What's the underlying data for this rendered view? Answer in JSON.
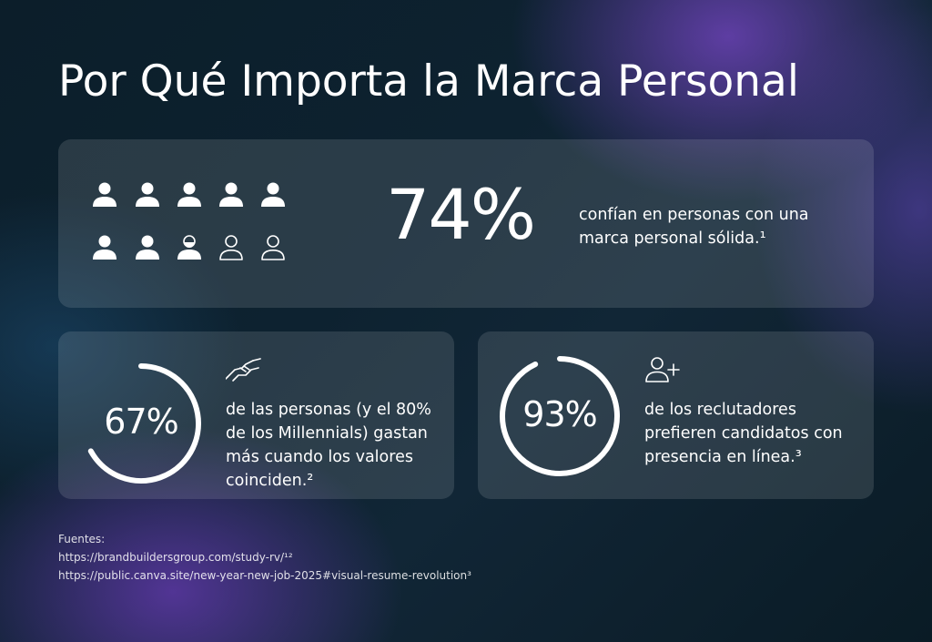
{
  "title": "Por Qué Importa la Marca Personal",
  "stat_trust": {
    "value": "74%",
    "description": "confían en personas con una marca personal sólida.¹",
    "people_total": 10,
    "people_filled": 7.5
  },
  "stat_values": {
    "value": "67%",
    "fraction": 0.67,
    "icon": "handshake-icon",
    "description": "de las personas (y el 80% de los Millennials) gastan más cuando los valores coinciden.²"
  },
  "stat_recruiters": {
    "value": "93%",
    "fraction": 0.93,
    "icon": "user-plus-icon",
    "description": "de los reclutadores prefieren candidatos con presencia en línea.³"
  },
  "sources": {
    "heading": "Fuentes:",
    "links": [
      "https://brandbuildersgroup.com/study-rv/¹²",
      "https://public.canva.site/new-year-new-job-2025#visual-resume-revolution³"
    ]
  },
  "colors": {
    "card": "#ffffff1f",
    "text": "#ffffff",
    "accent_purple": "#7846c8"
  }
}
